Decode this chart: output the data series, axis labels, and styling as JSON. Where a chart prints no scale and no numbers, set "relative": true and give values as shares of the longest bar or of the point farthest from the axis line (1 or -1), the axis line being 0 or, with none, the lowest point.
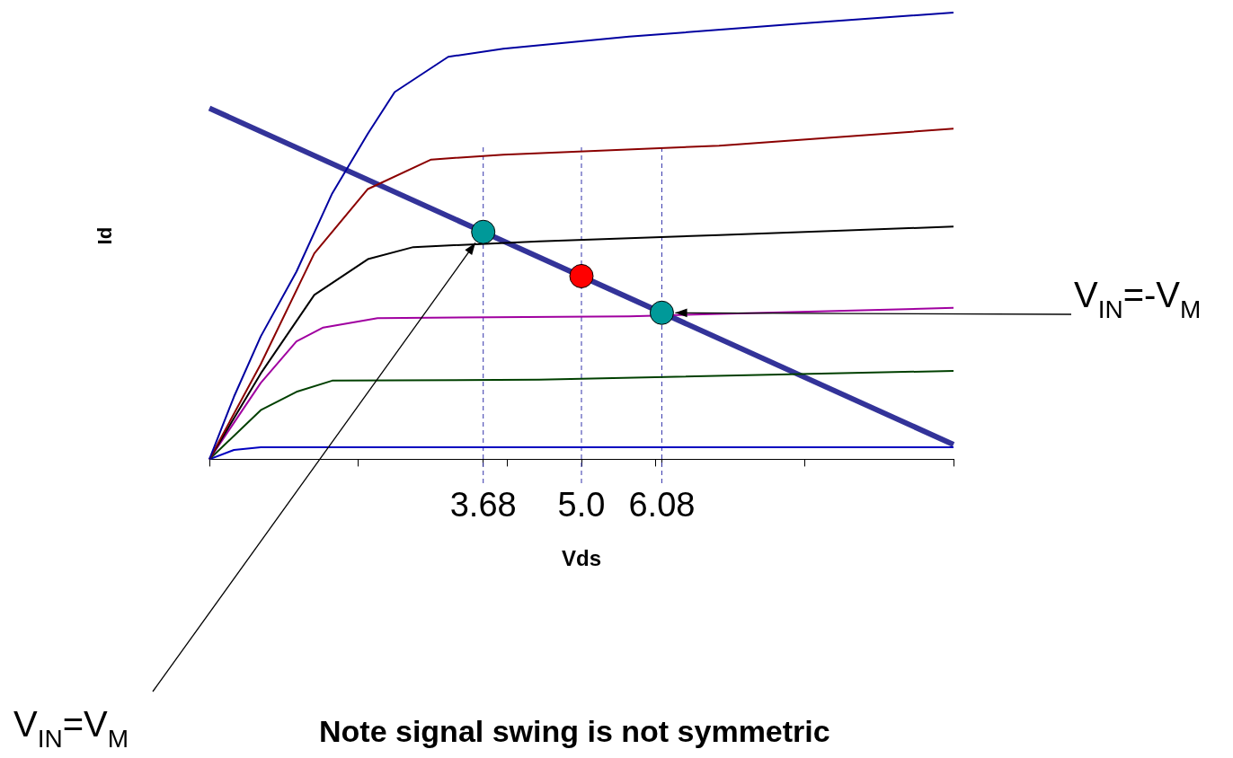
{
  "chart_data": {
    "type": "line",
    "relative": true,
    "xlabel": "Vds",
    "ylabel": "Id",
    "marker": "none",
    "legend": false,
    "grid": false,
    "tick_labels": "x",
    "xlim": [
      0,
      10
    ],
    "xticks": [
      {
        "value": 0,
        "label": null
      },
      {
        "value": 2,
        "label": null
      },
      {
        "value": 3.68,
        "label": "3.68"
      },
      {
        "value": 4,
        "label": null
      },
      {
        "value": 5.0,
        "label": "5.0"
      },
      {
        "value": 6,
        "label": null
      },
      {
        "value": 6.08,
        "label": "6.08"
      },
      {
        "value": 8,
        "label": null
      },
      {
        "value": 10,
        "label": null
      }
    ],
    "series": [
      {
        "color": "#0000a0",
        "x": [
          0,
          0.33,
          0.69,
          1.17,
          1.65,
          2.13,
          2.49,
          3.21,
          3.95,
          5.64,
          8.06,
          10
        ],
        "values": [
          0,
          0.14,
          0.275,
          0.42,
          0.595,
          0.729,
          0.822,
          0.901,
          0.919,
          0.946,
          0.977,
          1
        ]
      },
      {
        "color": "#8b0000",
        "x": [
          0,
          0.69,
          1.41,
          2.13,
          2.98,
          3.95,
          6.85,
          10
        ],
        "values": [
          0,
          0.213,
          0.461,
          0.605,
          0.671,
          0.682,
          0.702,
          0.74
        ]
      },
      {
        "color": "#000000",
        "x": [
          0,
          0.69,
          1.41,
          2.13,
          2.74,
          4.43,
          6.85,
          10
        ],
        "values": [
          0,
          0.192,
          0.368,
          0.448,
          0.475,
          0.488,
          0.502,
          0.521
        ]
      },
      {
        "color": "#a000a0",
        "x": [
          0,
          0.69,
          1.17,
          1.53,
          2.26,
          5.64,
          10
        ],
        "values": [
          0,
          0.171,
          0.264,
          0.295,
          0.316,
          0.32,
          0.339
        ]
      },
      {
        "color": "#004000",
        "x": [
          0,
          0.69,
          1.17,
          1.65,
          4.43,
          10
        ],
        "values": [
          0,
          0.11,
          0.151,
          0.176,
          0.178,
          0.198
        ]
      },
      {
        "color": "#0000c0",
        "x": [
          0,
          0.33,
          0.69,
          10
        ],
        "values": [
          0,
          0.021,
          0.027,
          0.027
        ]
      },
      {
        "color": "#333399",
        "x": [
          0,
          10
        ],
        "values": [
          0.786,
          0.033
        ]
      },
      {
        "type": "scatter",
        "marker": "circle",
        "color": "#009999",
        "x": [
          3.68,
          6.08
        ],
        "values": [
          0.509,
          0.328
        ]
      },
      {
        "type": "scatter",
        "marker": "circle",
        "color": "#ff0000",
        "x": [
          5.0
        ],
        "values": [
          0.41
        ]
      }
    ],
    "ref_lines": [
      {
        "axis": "x",
        "value": 3.68,
        "color": "#3333aa",
        "line_style": "dashed"
      },
      {
        "axis": "x",
        "value": 5.0,
        "color": "#3333aa",
        "line_style": "dashed"
      },
      {
        "axis": "x",
        "value": 6.08,
        "color": "#3333aa",
        "line_style": "dashed"
      }
    ],
    "annotations": [
      "V$_{IN}$=V$_{M}$",
      "V$_{IN}$=-V$_{M}$",
      "Note signal swing is not symmetric"
    ]
  }
}
